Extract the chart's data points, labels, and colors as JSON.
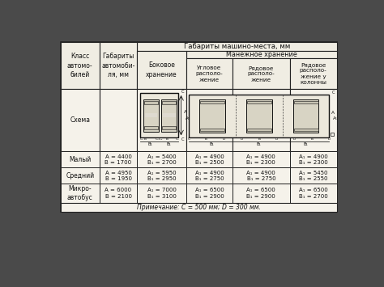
{
  "title_main": "Габариты машино-места, мм",
  "title_sub": "Манежное хранение",
  "col_headers": [
    "Класс\nавтомо-\nбилей",
    "Габариты\nавтомоби-\nля, мм",
    "Боковое\nхранение",
    "Угловое\nрасполо-\nжение",
    "Рядовое\nрасполо-\nжение",
    "Рядовое\nрасполо-\nжение у\nколонны"
  ],
  "rows": [
    {
      "class": "Малый",
      "dims": "A = 4400\nB = 1700",
      "side": "A₁ = 5400\nB₁ = 2700",
      "angular": "A₁ = 4900\nB₁ = 2500",
      "row_plain": "A₁ = 4900\nB₁ = 2300",
      "row_col": "A₁ = 4900\nB₁ = 2300"
    },
    {
      "class": "Средний",
      "dims": "A = 4950\nB = 1950",
      "side": "A₁ = 5950\nB₁ = 2950",
      "angular": "A₁ = 4900\nB₁ = 2750",
      "row_plain": "A₁ = 4900\nB₁ = 2750",
      "row_col": "A₁ = 5450\nB₁ = 2550"
    },
    {
      "class": "Микро-\nавтобус",
      "dims": "A = 6000\nB = 2100",
      "side": "A₁ = 7000\nB₁ = 3100",
      "angular": "A₁ = 6500\nB₁ = 2900",
      "row_plain": "A₁ = 6500\nB₁ = 2900",
      "row_col": "A₁ = 6500\nB₁ = 2700"
    }
  ],
  "note": "Примечание: C = 500 мм; D = 300 мм.",
  "outer_bg": "#4a4a4a",
  "cell_bg": "#f5f2ea",
  "header_bg": "#f0ede3",
  "line_color": "#222222",
  "text_color": "#111111"
}
